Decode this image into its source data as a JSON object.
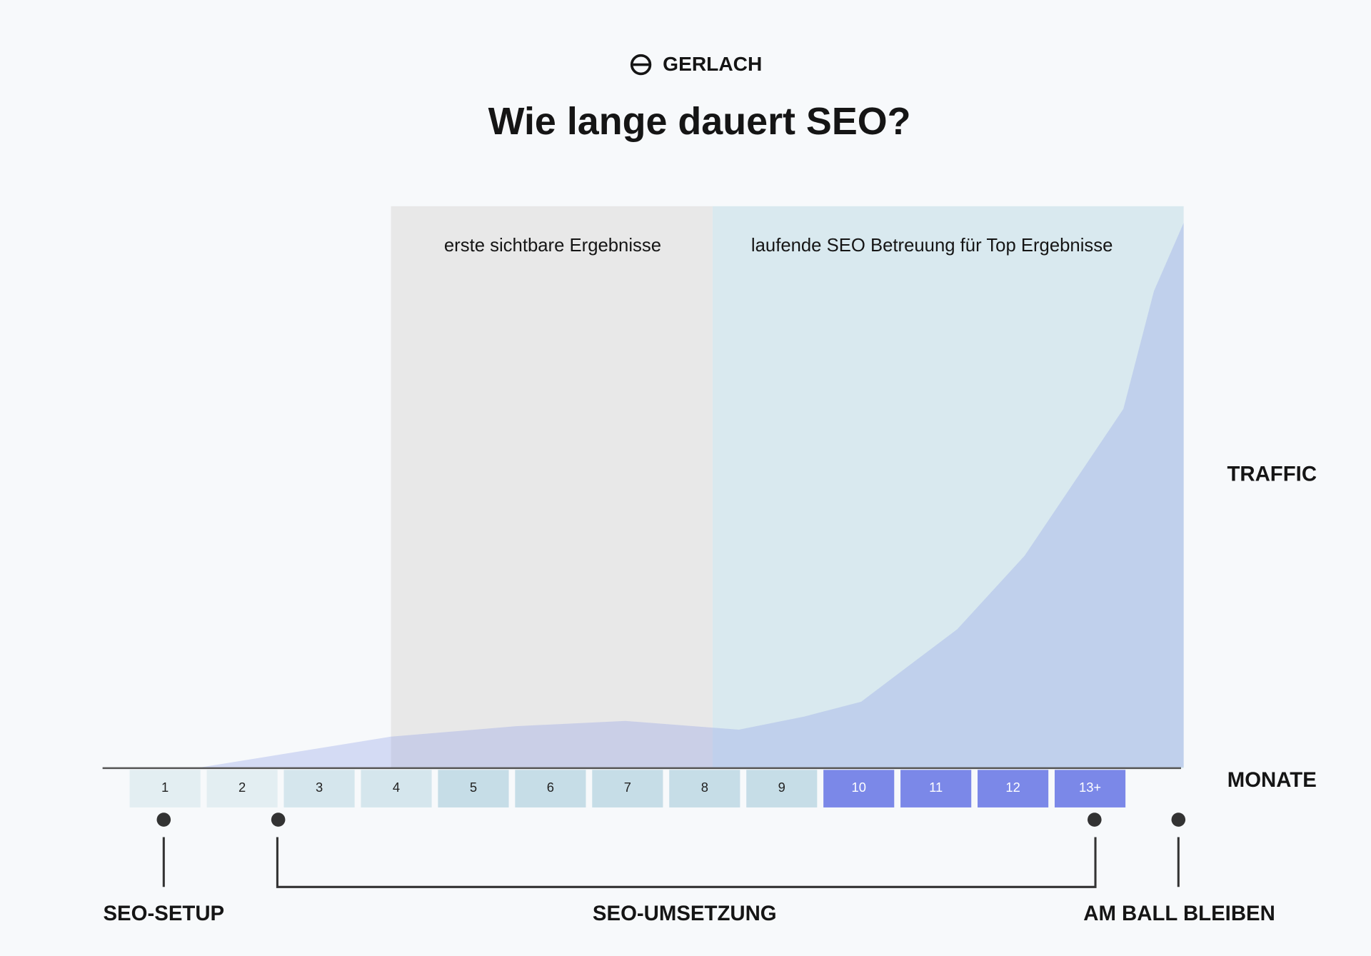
{
  "header": {
    "brand": "GERLACH",
    "title": "Wie lange dauert SEO?"
  },
  "phases": [
    "erste sichtbare Ergebnisse",
    "laufende SEO Betreuung für Top Ergebnisse"
  ],
  "axis_labels": {
    "y": "TRAFFIC",
    "x": "MONATE"
  },
  "months": [
    "1",
    "2",
    "3",
    "4",
    "5",
    "6",
    "7",
    "8",
    "9",
    "10",
    "11",
    "12",
    "13+"
  ],
  "milestones": [
    "SEO-SETUP",
    "SEO-UMSETZUNG",
    "AM BALL BLEIBEN"
  ]
}
